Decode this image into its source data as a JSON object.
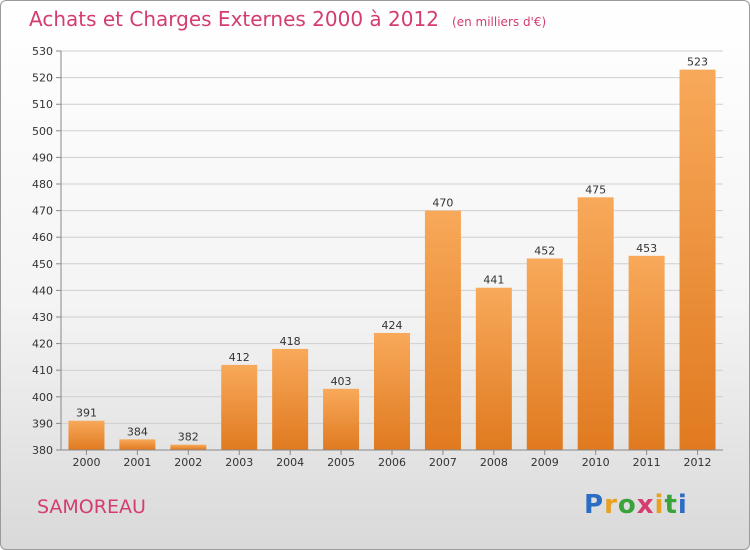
{
  "header": {
    "title": "Achats et Charges Externes 2000 à 2012",
    "subtitle": "(en milliers d'€)"
  },
  "footer": {
    "commune": "SAMOREAU",
    "logo_text": "Proxiti",
    "logo_colors": [
      "#2b6cc4",
      "#e8a020",
      "#3aa33a",
      "#d43d6e",
      "#e8a020",
      "#3aa33a",
      "#2b6cc4"
    ]
  },
  "colors": {
    "title": "#d43d6e",
    "bar_light": "#f8a95a",
    "bar_dark": "#e07a20"
  },
  "chart_data": {
    "type": "bar",
    "categories": [
      "2000",
      "2001",
      "2002",
      "2003",
      "2004",
      "2005",
      "2006",
      "2007",
      "2008",
      "2009",
      "2010",
      "2011",
      "2012"
    ],
    "values": [
      391,
      384,
      382,
      412,
      418,
      403,
      424,
      470,
      441,
      452,
      475,
      453,
      523
    ],
    "ylim": [
      380,
      530
    ],
    "yticks": [
      380,
      390,
      400,
      410,
      420,
      430,
      440,
      450,
      460,
      470,
      480,
      490,
      500,
      510,
      520,
      530
    ],
    "grid": true,
    "data_labels": true
  }
}
